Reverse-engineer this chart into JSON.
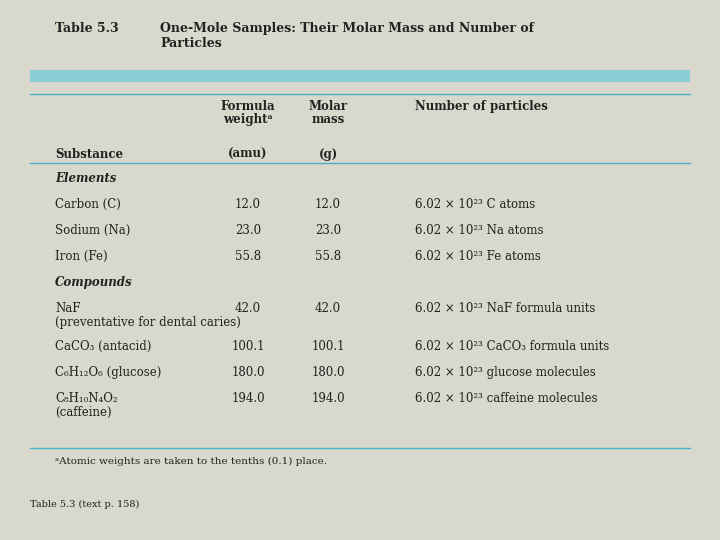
{
  "title_label": "Table 5.3",
  "title_text": "One-Mole Samples: Their Molar Mass and Number of\nParticles",
  "bg_color": "#d8d8cc",
  "teal_color": "#7ecad9",
  "line_color": "#4ab0c8",
  "col_headers_line1": [
    "",
    "Formula",
    "Molar",
    ""
  ],
  "col_headers_line2": [
    "",
    "weightᵃ",
    "mass",
    "Number of particles"
  ],
  "col_headers_line3": [
    "Substance",
    "(amu)",
    "(g)",
    ""
  ],
  "footnote": "ᵃAtomic weights are taken to the tenths (0.1) place.",
  "caption": "Table 5.3 (text p. 158)",
  "rows": [
    {
      "substance": "Elements",
      "fw": "",
      "mm": "",
      "np": "",
      "type": "section"
    },
    {
      "substance": "Carbon (C)",
      "fw": "12.0",
      "mm": "12.0",
      "np": "6.02 × 10²³ C atoms",
      "type": "data"
    },
    {
      "substance": "Sodium (Na)",
      "fw": "23.0",
      "mm": "23.0",
      "np": "6.02 × 10²³ Na atoms",
      "type": "data"
    },
    {
      "substance": "Iron (Fe)",
      "fw": "55.8",
      "mm": "55.8",
      "np": "6.02 × 10²³ Fe atoms",
      "type": "data"
    },
    {
      "substance": "Compounds",
      "fw": "",
      "mm": "",
      "np": "",
      "type": "section"
    },
    {
      "substance": "NaF",
      "substance2": "(preventative for dental caries)",
      "fw": "42.0",
      "mm": "42.0",
      "np": "6.02 × 10²³ NaF formula units",
      "type": "data2"
    },
    {
      "substance": "CaCO₃ (antacid)",
      "fw": "100.1",
      "mm": "100.1",
      "np": "6.02 × 10²³ CaCO₃ formula units",
      "type": "data"
    },
    {
      "substance": "C₆H₁₂O₆ (glucose)",
      "fw": "180.0",
      "mm": "180.0",
      "np": "6.02 × 10²³ glucose molecules",
      "type": "data"
    },
    {
      "substance": "C₈H₁₀N₄O₂",
      "substance2": "(caffeine)",
      "fw": "194.0",
      "mm": "194.0",
      "np": "6.02 × 10²³ caffeine molecules",
      "type": "data2"
    }
  ]
}
